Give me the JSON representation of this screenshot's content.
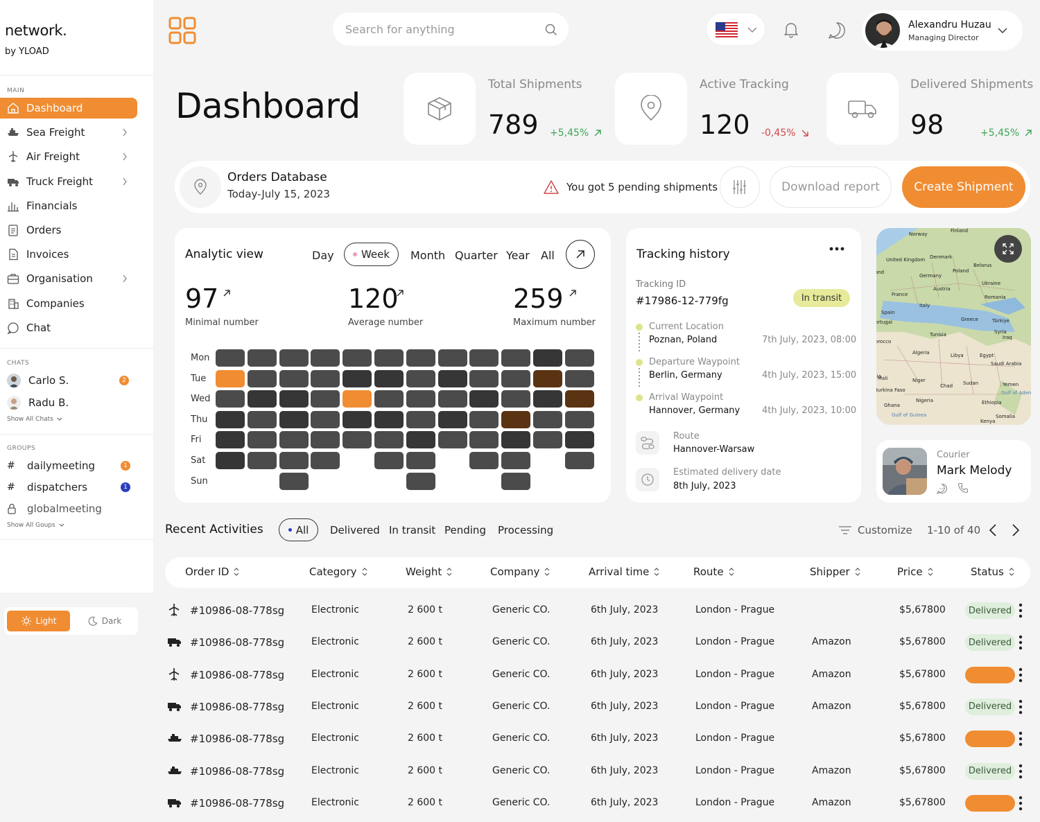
{
  "brand": {
    "name": "network.",
    "by": "by YLOAD"
  },
  "sidebar": {
    "main_label": "MAIN",
    "items": [
      {
        "label": "Dashboard",
        "icon": "home-icon",
        "active": true
      },
      {
        "label": "Sea Freight",
        "icon": "ship-icon",
        "chevron": true
      },
      {
        "label": "Air Freight",
        "icon": "plane-icon",
        "chevron": true
      },
      {
        "label": "Truck Freight",
        "icon": "truck-icon",
        "chevron": true
      },
      {
        "label": "Financials",
        "icon": "bar-chart-icon"
      },
      {
        "label": "Orders",
        "icon": "clipboard-icon"
      },
      {
        "label": "Invoices",
        "icon": "document-icon"
      },
      {
        "label": "Organisation",
        "icon": "briefcase-icon",
        "chevron": true
      },
      {
        "label": "Companies",
        "icon": "building-icon"
      },
      {
        "label": "Chat",
        "icon": "chat-icon"
      }
    ],
    "chats_label": "CHATS",
    "chats": [
      {
        "name": "Carlo S.",
        "badge": "2"
      },
      {
        "name": "Radu B."
      }
    ],
    "show_all_chats": "Show All  Chats",
    "groups_label": "GROUPS",
    "groups": [
      {
        "name": "dailymeeting",
        "badge": "1",
        "badge_color": "#f08c32"
      },
      {
        "name": "dispatchers",
        "badge": "1",
        "badge_color": "#2a3fbf"
      },
      {
        "name": "globalmeeting",
        "locked": true
      }
    ],
    "show_all_groups": "Show All  Goups",
    "theme": {
      "light": "Light",
      "dark": "Dark",
      "selected": "Light"
    }
  },
  "header": {
    "search_placeholder": "Search for anything",
    "user": {
      "name": "Alexandru Huzau",
      "role": "Managing Director"
    }
  },
  "page_title": "Dashboard",
  "stats": [
    {
      "label": "Total Shipments",
      "value": "789",
      "change": "+5,45%",
      "trend": "up",
      "icon": "package-icon"
    },
    {
      "label": "Active Tracking",
      "value": "120",
      "change": "-0,45%",
      "trend": "down",
      "icon": "map-pin-icon"
    },
    {
      "label": "Delivered Shipments",
      "value": "98",
      "change": "+5,45%",
      "trend": "up",
      "icon": "truck-icon"
    }
  ],
  "orders_bar": {
    "title": "Orders Database",
    "date": "Today-July 15, 2023",
    "warning": "You got 5 pending shipments",
    "download": "Download report",
    "create": "Create Shipment"
  },
  "analytic": {
    "title": "Analytic view",
    "periods": [
      "Day",
      "Week",
      "Month",
      "Quarter",
      "Year",
      "All"
    ],
    "selected_period": "Week",
    "metrics": [
      {
        "value": "97",
        "label": "Minimal number"
      },
      {
        "value": "120",
        "label": "Average number"
      },
      {
        "value": "259",
        "label": "Maximum number"
      }
    ],
    "days": [
      "Mon",
      "Tue",
      "Wed",
      "Thu",
      "Fri",
      "Sat",
      "Sun"
    ],
    "heatmap": [
      [
        "g",
        "g",
        "g",
        "g",
        "g",
        "g",
        "g",
        "g",
        "g",
        "g",
        "d",
        "g"
      ],
      [
        "o",
        "g",
        "g",
        "g",
        "d",
        "d",
        "g",
        "d",
        "g",
        "g",
        "b",
        "g"
      ],
      [
        "g",
        "d",
        "d",
        "g",
        "o",
        "g",
        "g",
        "g",
        "d",
        "g",
        "d",
        "b"
      ],
      [
        "d",
        "g",
        "d",
        "g",
        "d",
        "d",
        "g",
        "d",
        "g",
        "b",
        "g",
        "g"
      ],
      [
        "d",
        "g",
        "g",
        "g",
        "g",
        "g",
        "d",
        "g",
        "g",
        "d",
        "g",
        "d"
      ],
      [
        "d",
        "g",
        "g",
        "g",
        "",
        "g",
        "g",
        "",
        "g",
        "g",
        "",
        "g"
      ],
      [
        "",
        "",
        "g",
        "",
        "",
        "",
        "g",
        "",
        "",
        "g",
        "",
        ""
      ]
    ],
    "colors": {
      "g": "#4b4b4b",
      "d": "#363636",
      "o": "#f08c32",
      "b": "#5a3313"
    }
  },
  "tracking": {
    "title": "Tracking history",
    "id_label": "Tracking ID",
    "id": "#17986-12-779fg",
    "status": "In transit",
    "steps": [
      {
        "label": "Current Location",
        "place": "Poznan, Poland",
        "time": "7th July, 2023, 08:00"
      },
      {
        "label": "Departure Waypoint",
        "place": "Berlin, Germany",
        "time": "4th July, 2023, 15:00"
      },
      {
        "label": "Arrival Waypoint",
        "place": "Hannover, Germany",
        "time": "4th July, 2023, 10:00"
      }
    ],
    "route_label": "Route",
    "route": "Hannover-Warsaw",
    "eta_label": "Estimated delivery date",
    "eta": "8th July, 2023"
  },
  "map": {
    "labels": [
      "Finland",
      "Norway",
      "United Kingdom",
      "Denmark",
      "Poland",
      "Belarus",
      "Germany",
      "Ukraine",
      "Austria",
      "France",
      "Romania",
      "Italy",
      "Spain",
      "Greece",
      "Türkiye",
      "Portugal",
      "Tunisia",
      "Syria",
      "Iraq",
      "Morocco",
      "Algeria",
      "Libya",
      "Egypt",
      "Saudi Arabia",
      "Mali",
      "Niger",
      "Chad",
      "Sudan",
      "Yemen",
      "Burkina Faso",
      "Nigeria",
      "Ethiopia",
      "Ghana",
      "Somalia",
      "Kenya",
      "Gulf of Aden",
      "Gulf of Guinea",
      "land",
      "ania"
    ]
  },
  "courier": {
    "label": "Courier",
    "name": "Mark Melody"
  },
  "activities": {
    "title": "Recent Activities",
    "filters": [
      "All",
      "Delivered",
      "In transit",
      "Pending",
      "Processing"
    ],
    "selected_filter": "All",
    "customize": "Customize",
    "pagination": "1-10 of 40",
    "columns": [
      "Order ID",
      "Category",
      "Weight",
      "Company",
      "Arrival time",
      "Route",
      "Shipper",
      "Price",
      "Status"
    ],
    "rows": [
      {
        "icon": "plane-icon",
        "id": "#10986-08-778sg",
        "category": "Electronic",
        "weight": "2 600 t",
        "company": "Generic CO.",
        "arrival": "6th July, 2023",
        "route": "London - Prague",
        "shipper": "",
        "price": "$5,67800",
        "status": "Delivered"
      },
      {
        "icon": "truck-icon",
        "id": "#10986-08-778sg",
        "category": "Electronic",
        "weight": "2 600 t",
        "company": "Generic CO.",
        "arrival": "6th July, 2023",
        "route": "London - Prague",
        "shipper": "Amazon",
        "price": "$5,67800",
        "status": "Delivered"
      },
      {
        "icon": "plane-icon",
        "id": "#10986-08-778sg",
        "category": "Electronic",
        "weight": "2 600 t",
        "company": "Generic CO.",
        "arrival": "6th July, 2023",
        "route": "London - Prague",
        "shipper": "Amazon",
        "price": "$5,67800",
        "status": ""
      },
      {
        "icon": "truck-icon",
        "id": "#10986-08-778sg",
        "category": "Electronic",
        "weight": "2 600 t",
        "company": "Generic CO.",
        "arrival": "6th July, 2023",
        "route": "London - Prague",
        "shipper": "Amazon",
        "price": "$5,67800",
        "status": "Delivered"
      },
      {
        "icon": "ship-icon",
        "id": "#10986-08-778sg",
        "category": "Electronic",
        "weight": "2 600 t",
        "company": "Generic CO.",
        "arrival": "6th July, 2023",
        "route": "London - Prague",
        "shipper": "",
        "price": "$5,67800",
        "status": ""
      },
      {
        "icon": "ship-icon",
        "id": "#10986-08-778sg",
        "category": "Electronic",
        "weight": "2 600 t",
        "company": "Generic CO.",
        "arrival": "6th July, 2023",
        "route": "London - Prague",
        "shipper": "Amazon",
        "price": "$5,67800",
        "status": "Delivered"
      },
      {
        "icon": "truck-icon",
        "id": "#10986-08-778sg",
        "category": "Electronic",
        "weight": "2 600 t",
        "company": "Generic CO.",
        "arrival": "6th July, 2023",
        "route": "London - Prague",
        "shipper": "Amazon",
        "price": "$5,67800",
        "status": ""
      }
    ]
  },
  "colors": {
    "accent": "#f08c32",
    "delivered_bg": "#dfeedd",
    "up": "#3aa655",
    "down": "#d04848",
    "in_transit_bg": "#e6ea9a"
  }
}
